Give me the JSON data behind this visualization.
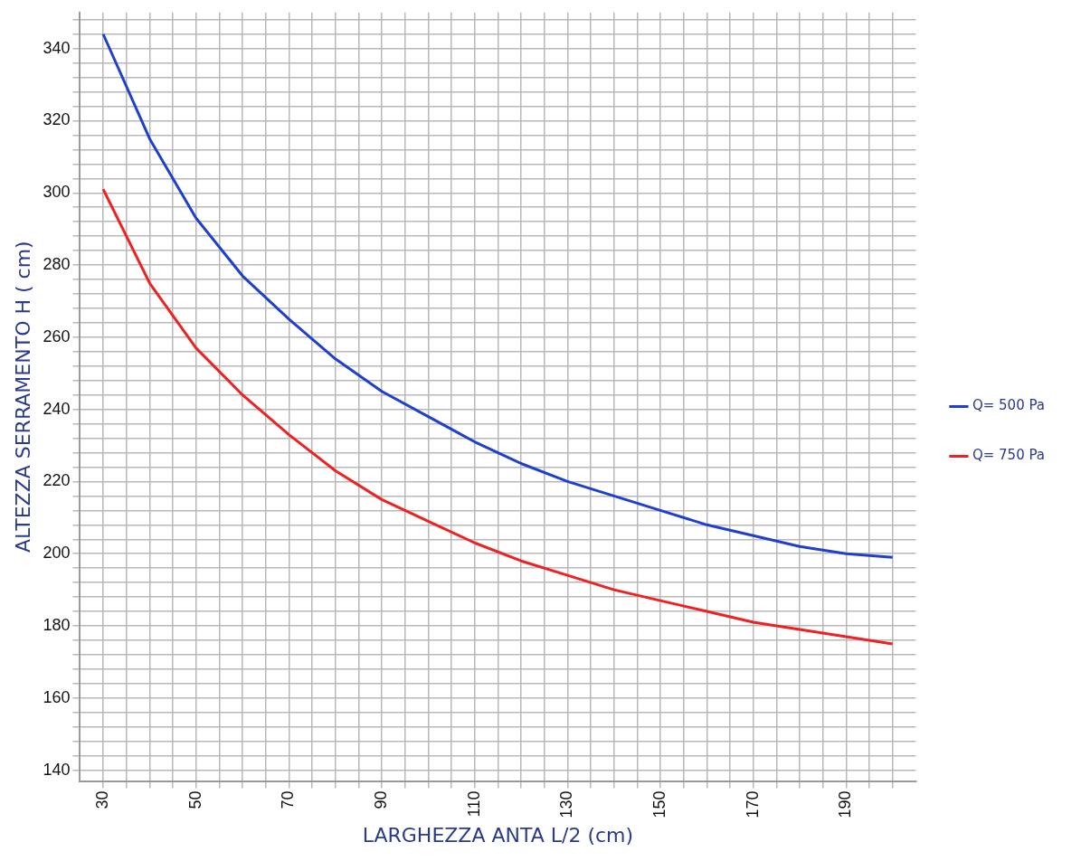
{
  "chart_data": {
    "type": "line",
    "xlabel": "LARGHEZZA ANTA L/2 (cm)",
    "ylabel": "ALTEZZA SERRAMENTO H ( cm)",
    "x": [
      30,
      40,
      50,
      60,
      70,
      80,
      90,
      100,
      110,
      120,
      130,
      140,
      150,
      160,
      170,
      180,
      190,
      200
    ],
    "series": [
      {
        "name": "Q= 500 Pa",
        "color": "#1f3fcf",
        "values": [
          344,
          315,
          293,
          277,
          265,
          254,
          245,
          238,
          231,
          225,
          220,
          216,
          212,
          208,
          205,
          202,
          200,
          199
        ]
      },
      {
        "name": "Q= 750 Pa",
        "color": "#ee2222",
        "values": [
          301,
          275,
          257,
          244,
          233,
          223,
          215,
          209,
          203,
          198,
          194,
          190,
          187,
          184,
          181,
          179,
          177,
          175
        ]
      }
    ],
    "xlim": [
      25,
      205
    ],
    "xticks": [
      30,
      {
        "value": 35,
        "label": null
      },
      {
        "value": 40,
        "label": null
      },
      {
        "value": 45,
        "label": null
      },
      50,
      {
        "value": 55,
        "label": null
      },
      {
        "value": 60,
        "label": null
      },
      {
        "value": 65,
        "label": null
      },
      70,
      {
        "value": 75,
        "label": null
      },
      {
        "value": 80,
        "label": null
      },
      {
        "value": 85,
        "label": null
      },
      90,
      {
        "value": 95,
        "label": null
      },
      {
        "value": 100,
        "label": null
      },
      {
        "value": 105,
        "label": null
      },
      110,
      {
        "value": 115,
        "label": null
      },
      {
        "value": 120,
        "label": null
      },
      {
        "value": 125,
        "label": null
      },
      130,
      {
        "value": 135,
        "label": null
      },
      {
        "value": 140,
        "label": null
      },
      {
        "value": 145,
        "label": null
      },
      150,
      {
        "value": 155,
        "label": null
      },
      {
        "value": 160,
        "label": null
      },
      {
        "value": 165,
        "label": null
      },
      170,
      {
        "value": 175,
        "label": null
      },
      {
        "value": 180,
        "label": null
      },
      {
        "value": 185,
        "label": null
      },
      190,
      {
        "value": 195,
        "label": null
      },
      {
        "value": 200,
        "label": null
      }
    ],
    "ylim": [
      137,
      350
    ],
    "yticks": [
      140,
      {
        "value": 144,
        "label": null
      },
      {
        "value": 148,
        "label": null
      },
      {
        "value": 152,
        "label": null
      },
      {
        "value": 156,
        "label": null
      },
      160,
      {
        "value": 164,
        "label": null
      },
      {
        "value": 168,
        "label": null
      },
      {
        "value": 172,
        "label": null
      },
      {
        "value": 176,
        "label": null
      },
      180,
      {
        "value": 184,
        "label": null
      },
      {
        "value": 188,
        "label": null
      },
      {
        "value": 192,
        "label": null
      },
      {
        "value": 196,
        "label": null
      },
      200,
      {
        "value": 204,
        "label": null
      },
      {
        "value": 208,
        "label": null
      },
      {
        "value": 212,
        "label": null
      },
      {
        "value": 216,
        "label": null
      },
      220,
      {
        "value": 224,
        "label": null
      },
      {
        "value": 228,
        "label": null
      },
      {
        "value": 232,
        "label": null
      },
      {
        "value": 236,
        "label": null
      },
      240,
      {
        "value": 244,
        "label": null
      },
      {
        "value": 248,
        "label": null
      },
      {
        "value": 252,
        "label": null
      },
      {
        "value": 256,
        "label": null
      },
      260,
      {
        "value": 264,
        "label": null
      },
      {
        "value": 268,
        "label": null
      },
      {
        "value": 272,
        "label": null
      },
      {
        "value": 276,
        "label": null
      },
      280,
      {
        "value": 284,
        "label": null
      },
      {
        "value": 288,
        "label": null
      },
      {
        "value": 292,
        "label": null
      },
      {
        "value": 296,
        "label": null
      },
      300,
      {
        "value": 304,
        "label": null
      },
      {
        "value": 308,
        "label": null
      },
      {
        "value": 312,
        "label": null
      },
      {
        "value": 316,
        "label": null
      },
      320,
      {
        "value": 324,
        "label": null
      },
      {
        "value": 328,
        "label": null
      },
      {
        "value": 332,
        "label": null
      },
      {
        "value": 336,
        "label": null
      },
      340,
      {
        "value": 344,
        "label": null
      },
      {
        "value": 348,
        "label": null
      }
    ],
    "grid": true,
    "legend": "right",
    "marker": "none",
    "line_style": "solid"
  }
}
